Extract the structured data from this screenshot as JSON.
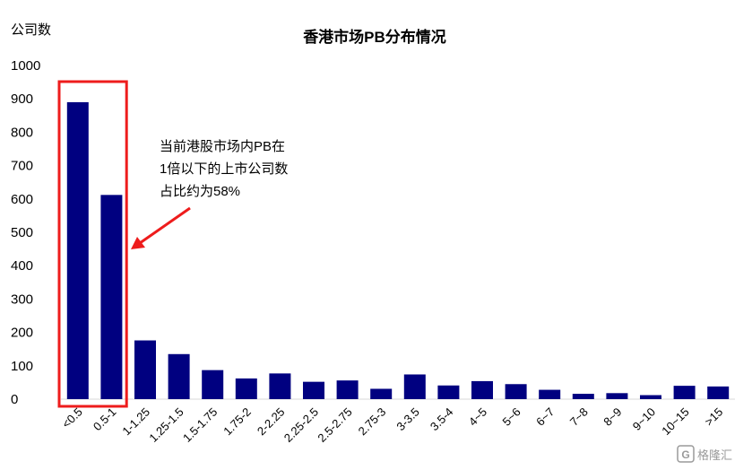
{
  "chart_data": {
    "type": "bar",
    "title": "香港市场PB分布情况",
    "ylabel": "公司数",
    "xlabel": "",
    "ylim": [
      0,
      1000
    ],
    "yticks": [
      0,
      100,
      200,
      300,
      400,
      500,
      600,
      700,
      800,
      900,
      1000
    ],
    "grid": false,
    "bar_color": "#000080",
    "categories": [
      "<0.5",
      "0.5-1",
      "1-1.25",
      "1.25-1.5",
      "1.5-1.75",
      "1.75-2",
      "2-2.25",
      "2.25-2.5",
      "2.5-2.75",
      "2.75-3",
      "3-3.5",
      "3.5-4",
      "4~5",
      "5~6",
      "6~7",
      "7~8",
      "8~9",
      "9~10",
      "10~15",
      ">15"
    ],
    "values": [
      890,
      612,
      176,
      135,
      87,
      62,
      77,
      52,
      56,
      31,
      74,
      41,
      54,
      45,
      28,
      16,
      18,
      12,
      40,
      38
    ],
    "annotation": {
      "lines": [
        "当前港股市场内PB在",
        "1倍以下的上市公司数",
        "占比约为58%"
      ],
      "highlight_color": "#ee1c1c",
      "highlight_categories": [
        "<0.5",
        "0.5-1"
      ]
    }
  },
  "watermark": {
    "icon": "watermark-logo-icon",
    "text": "格隆汇"
  }
}
